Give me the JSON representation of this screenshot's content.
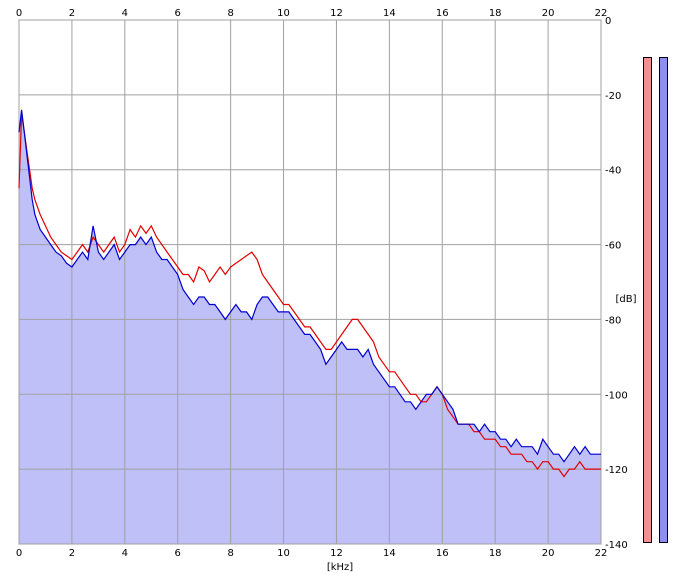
{
  "colors": {
    "background": "#ffffff",
    "plot_background": "#ffffff",
    "fill": "#c0c0f8",
    "grid": "#a0a0a0",
    "left_channel": "#e00000",
    "right_channel": "#0000cc",
    "meter_left": "#f49090",
    "meter_right": "#8f8ff0"
  },
  "chart_data": {
    "type": "line",
    "x_label": "[kHz]",
    "y_label": "[dB]",
    "xlim": [
      0,
      22
    ],
    "ylim": [
      -140,
      0
    ],
    "x_ticks": [
      "0",
      "2",
      "4",
      "6",
      "8",
      "10",
      "12",
      "14",
      "16",
      "18",
      "20",
      "22"
    ],
    "y_ticks": [
      "0",
      "-20",
      "-40",
      "-60",
      "-80",
      "-100",
      "-120",
      "-140"
    ],
    "grid": true,
    "series": [
      {
        "x": [
          0,
          0.1,
          0.2,
          0.3,
          0.4,
          0.5,
          0.6,
          0.7,
          0.8,
          1,
          1.2,
          1.4,
          1.6,
          1.8,
          2,
          2.2,
          2.4,
          2.6,
          2.8,
          3,
          3.2,
          3.4,
          3.6,
          3.8,
          4,
          4.2,
          4.4,
          4.6,
          4.8,
          5,
          5.2,
          5.4,
          5.6,
          5.8,
          6,
          6.2,
          6.4,
          6.6,
          6.8,
          7,
          7.2,
          7.4,
          7.6,
          7.8,
          8,
          8.2,
          8.4,
          8.6,
          8.8,
          9,
          9.2,
          9.4,
          9.6,
          9.8,
          10,
          10.2,
          10.4,
          10.6,
          10.8,
          11,
          11.2,
          11.4,
          11.6,
          11.8,
          12,
          12.2,
          12.4,
          12.6,
          12.8,
          13,
          13.2,
          13.4,
          13.6,
          13.8,
          14,
          14.2,
          14.4,
          14.6,
          14.8,
          15,
          15.2,
          15.4,
          15.6,
          15.8,
          16,
          16.2,
          16.4,
          16.6,
          16.8,
          17,
          17.2,
          17.4,
          17.6,
          17.8,
          18,
          18.2,
          18.4,
          18.6,
          18.8,
          19,
          19.2,
          19.4,
          19.6,
          19.8,
          20,
          20.2,
          20.4,
          20.6,
          20.8,
          21,
          21.2,
          21.4,
          21.6,
          21.8,
          22
        ],
        "y": [
          -45,
          -25,
          -30,
          -35,
          -40,
          -45,
          -48,
          -50,
          -52,
          -55,
          -58,
          -60,
          -62,
          -63,
          -64,
          -62,
          -60,
          -62,
          -58,
          -60,
          -62,
          -60,
          -58,
          -62,
          -60,
          -56,
          -58,
          -55,
          -57,
          -55,
          -58,
          -60,
          -62,
          -64,
          -66,
          -68,
          -68,
          -70,
          -66,
          -67,
          -70,
          -68,
          -66,
          -68,
          -66,
          -65,
          -64,
          -63,
          -62,
          -64,
          -68,
          -70,
          -72,
          -74,
          -76,
          -76,
          -78,
          -80,
          -82,
          -82,
          -84,
          -86,
          -88,
          -88,
          -86,
          -84,
          -82,
          -80,
          -80,
          -82,
          -84,
          -86,
          -90,
          -92,
          -94,
          -94,
          -96,
          -98,
          -100,
          -100,
          -102,
          -102,
          -100,
          -98,
          -100,
          -104,
          -106,
          -108,
          -108,
          -108,
          -110,
          -110,
          -112,
          -112,
          -112,
          -114,
          -114,
          -116,
          -116,
          -116,
          -118,
          -118,
          -120,
          -118,
          -118,
          -120,
          -120,
          -122,
          -120,
          -120,
          -118,
          -120,
          -120,
          -120,
          -120
        ]
      },
      {
        "x": [
          0,
          0.1,
          0.2,
          0.3,
          0.4,
          0.5,
          0.6,
          0.7,
          0.8,
          1,
          1.2,
          1.4,
          1.6,
          1.8,
          2,
          2.2,
          2.4,
          2.6,
          2.8,
          3,
          3.2,
          3.4,
          3.6,
          3.8,
          4,
          4.2,
          4.4,
          4.6,
          4.8,
          5,
          5.2,
          5.4,
          5.6,
          5.8,
          6,
          6.2,
          6.4,
          6.6,
          6.8,
          7,
          7.2,
          7.4,
          7.6,
          7.8,
          8,
          8.2,
          8.4,
          8.6,
          8.8,
          9,
          9.2,
          9.4,
          9.6,
          9.8,
          10,
          10.2,
          10.4,
          10.6,
          10.8,
          11,
          11.2,
          11.4,
          11.6,
          11.8,
          12,
          12.2,
          12.4,
          12.6,
          12.8,
          13,
          13.2,
          13.4,
          13.6,
          13.8,
          14,
          14.2,
          14.4,
          14.6,
          14.8,
          15,
          15.2,
          15.4,
          15.6,
          15.8,
          16,
          16.2,
          16.4,
          16.6,
          16.8,
          17,
          17.2,
          17.4,
          17.6,
          17.8,
          18,
          18.2,
          18.4,
          18.6,
          18.8,
          19,
          19.2,
          19.4,
          19.6,
          19.8,
          20,
          20.2,
          20.4,
          20.6,
          20.8,
          21,
          21.2,
          21.4,
          21.6,
          21.8,
          22
        ],
        "y": [
          -30,
          -24,
          -30,
          -36,
          -42,
          -48,
          -52,
          -54,
          -56,
          -58,
          -60,
          -62,
          -63,
          -65,
          -66,
          -64,
          -62,
          -64,
          -55,
          -62,
          -64,
          -62,
          -60,
          -64,
          -62,
          -60,
          -60,
          -58,
          -60,
          -58,
          -62,
          -64,
          -64,
          -66,
          -68,
          -72,
          -74,
          -76,
          -74,
          -74,
          -76,
          -76,
          -78,
          -80,
          -78,
          -76,
          -78,
          -78,
          -80,
          -76,
          -74,
          -74,
          -76,
          -78,
          -78,
          -78,
          -80,
          -82,
          -84,
          -84,
          -86,
          -88,
          -92,
          -90,
          -88,
          -86,
          -88,
          -88,
          -88,
          -90,
          -88,
          -92,
          -94,
          -96,
          -98,
          -98,
          -100,
          -102,
          -102,
          -104,
          -102,
          -100,
          -100,
          -98,
          -100,
          -102,
          -104,
          -108,
          -108,
          -108,
          -108,
          -110,
          -108,
          -110,
          -110,
          -112,
          -112,
          -114,
          -112,
          -114,
          -114,
          -114,
          -116,
          -112,
          -114,
          -116,
          -116,
          -118,
          -116,
          -114,
          -116,
          -114,
          -116,
          -116,
          -116
        ]
      }
    ]
  },
  "meters": {
    "left_level": 1.0,
    "right_level": 1.0
  }
}
